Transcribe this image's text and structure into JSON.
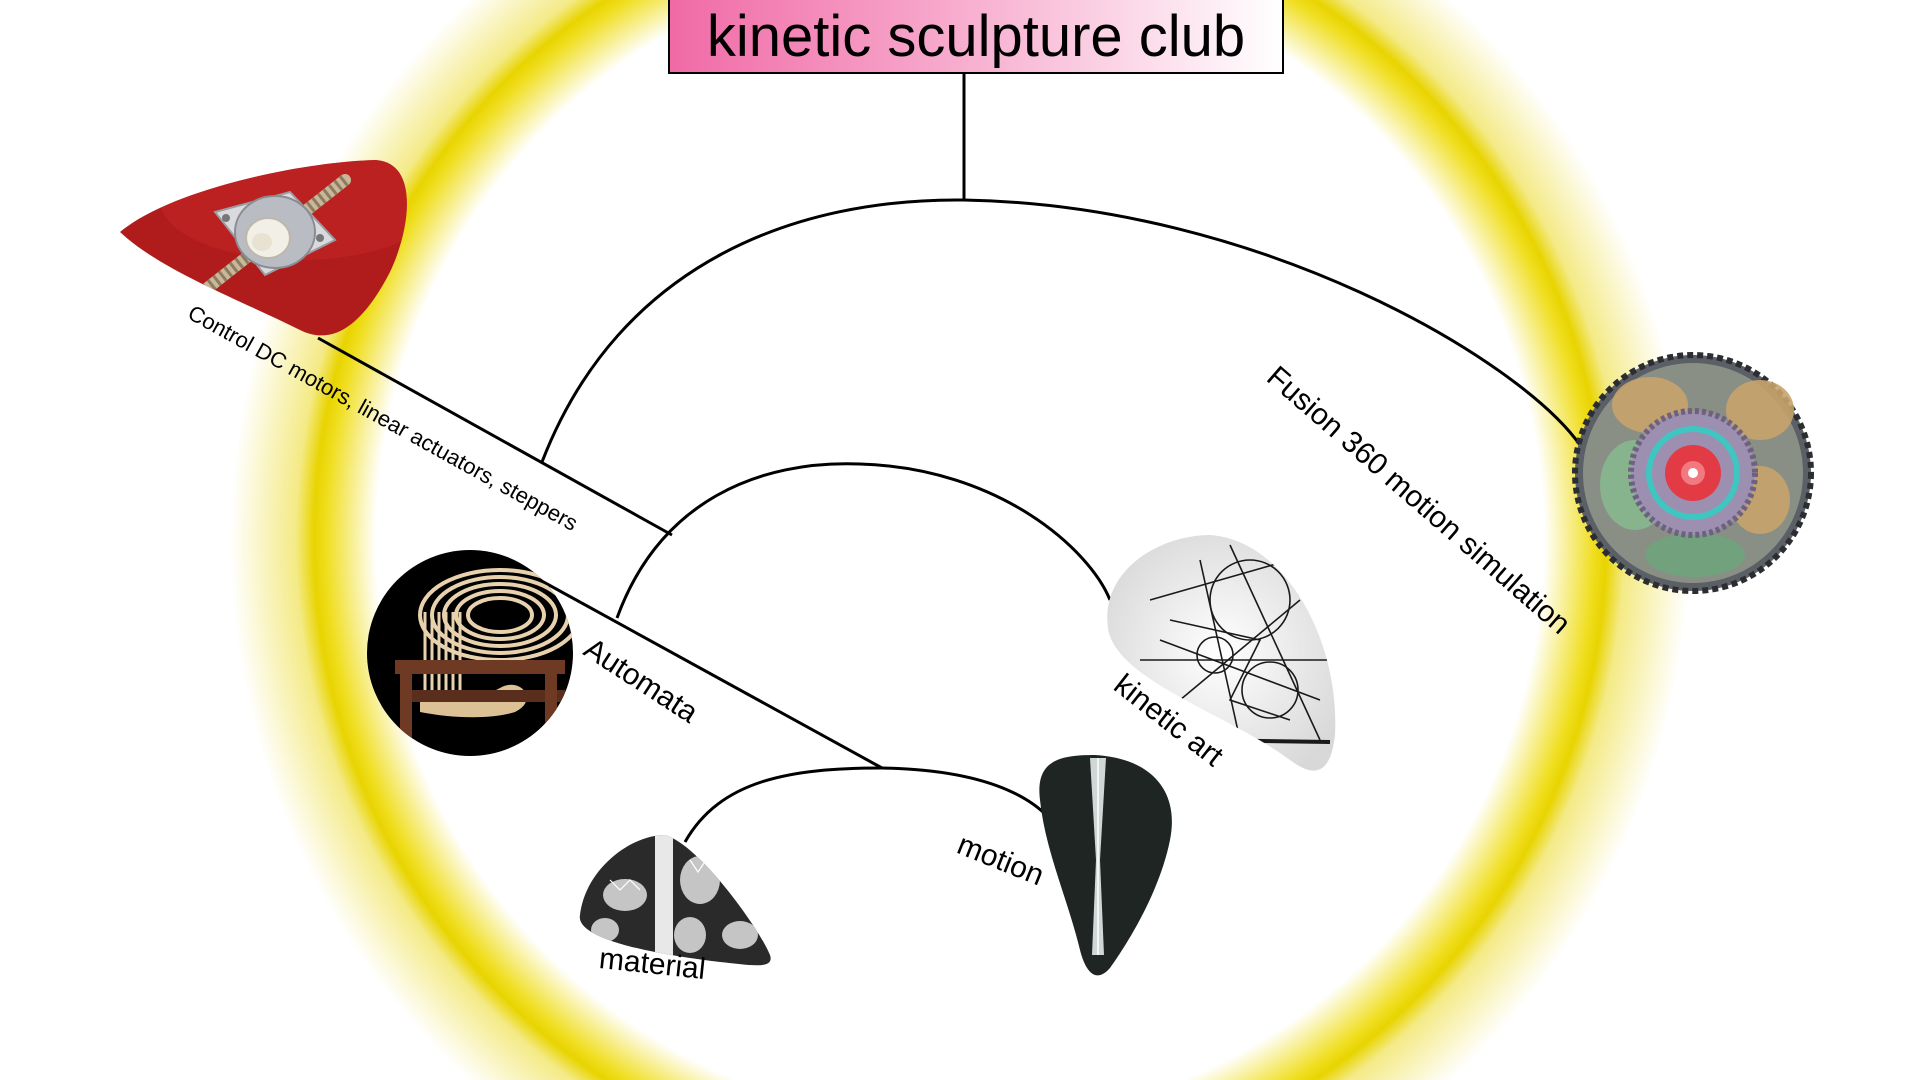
{
  "title": "kinetic sculpture club",
  "nodes": {
    "motors": "Control DC motors, linear actuators, steppers",
    "fusion": "Fusion 360 motion simulation",
    "automata": "Automata",
    "kinetic_art": "kinetic art",
    "motion": "motion",
    "material": "material"
  },
  "colors": {
    "ring": "#e8d400",
    "title_gradient_start": "#f06aa6",
    "motor_backdrop": "#b01c1c"
  }
}
